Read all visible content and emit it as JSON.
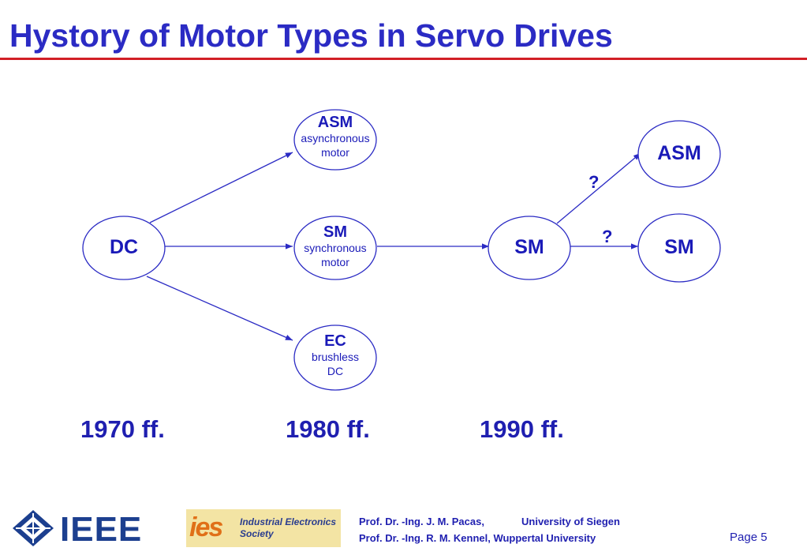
{
  "title": "Hystory of Motor Types in Servo Drives",
  "nodes": {
    "dc": {
      "label": "DC"
    },
    "asm_early": {
      "label": "ASM",
      "line1": "asynchronous",
      "line2": "motor"
    },
    "sm_early": {
      "label": "SM",
      "line1": "synchronous",
      "line2": "motor"
    },
    "ec": {
      "label": "EC",
      "line1": "brushless",
      "line2": "DC"
    },
    "sm_mid": {
      "label": "SM"
    },
    "asm_late": {
      "label": "ASM"
    },
    "sm_late": {
      "label": "SM"
    }
  },
  "questions": {
    "upper": "?",
    "lower": "?"
  },
  "years": [
    "1970 ff.",
    "1980 ff.",
    "1990 ff."
  ],
  "footer": {
    "ieee_logo": "IEEE",
    "ies_logo_mark": "ies",
    "ies_logo_line1": "Industrial Electronics",
    "ies_logo_line2": "Society",
    "author1": "Prof. Dr. -Ing. J. M. Pacas,",
    "affiliation1": "University of Siegen",
    "author2": "Prof. Dr. -Ing. R. M. Kennel, Wuppertal University",
    "page": "Page 5"
  },
  "colors": {
    "accent": "#1a1ab8",
    "rule": "#d21f26"
  }
}
